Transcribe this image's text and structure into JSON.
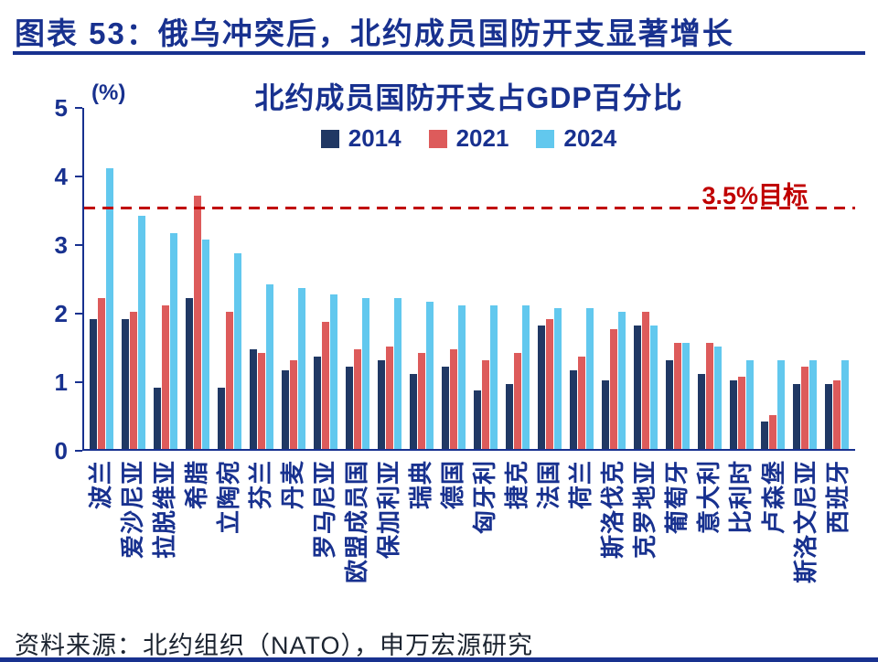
{
  "header": {
    "title": "图表 53：俄乌冲突后，北约成员国防开支显著增长"
  },
  "chart_data": {
    "type": "bar",
    "title": "北约成员国防开支占GDP百分比",
    "unit_label": "(%)",
    "xlabel": "",
    "ylabel": "%",
    "ylim": [
      0,
      5
    ],
    "yticks": [
      0,
      1,
      2,
      3,
      4,
      5
    ],
    "grid": false,
    "legend_position": "top-center",
    "target_line": {
      "value": 3.5,
      "label": "3.5%目标",
      "color": "#c00000",
      "style": "dashed"
    },
    "categories": [
      "波兰",
      "爱沙尼亚",
      "拉脱维亚",
      "希腊",
      "立陶宛",
      "芬兰",
      "丹麦",
      "罗马尼亚",
      "欧盟成员国",
      "保加利亚",
      "瑞典",
      "德国",
      "匈牙利",
      "捷克",
      "法国",
      "荷兰",
      "斯洛伐克",
      "克罗地亚",
      "葡萄牙",
      "意大利",
      "比利时",
      "卢森堡",
      "斯洛文尼亚",
      "西班牙"
    ],
    "series": [
      {
        "name": "2014",
        "color": "#203864",
        "values": [
          1.9,
          1.9,
          0.9,
          2.2,
          0.9,
          1.45,
          1.15,
          1.35,
          1.2,
          1.3,
          1.1,
          1.2,
          0.85,
          0.95,
          1.8,
          1.15,
          1.0,
          1.8,
          1.3,
          1.1,
          1.0,
          0.4,
          0.95,
          0.95
        ]
      },
      {
        "name": "2021",
        "color": "#dd5b5b",
        "values": [
          2.2,
          2.0,
          2.1,
          3.7,
          2.0,
          1.4,
          1.3,
          1.85,
          1.45,
          1.5,
          1.4,
          1.45,
          1.3,
          1.4,
          1.9,
          1.35,
          1.75,
          2.0,
          1.55,
          1.55,
          1.05,
          0.5,
          1.2,
          1.0
        ]
      },
      {
        "name": "2024",
        "color": "#62c8ee",
        "values": [
          4.1,
          3.4,
          3.15,
          3.05,
          2.85,
          2.4,
          2.35,
          2.25,
          2.2,
          2.2,
          2.15,
          2.1,
          2.1,
          2.1,
          2.05,
          2.05,
          2.0,
          1.8,
          1.55,
          1.5,
          1.3,
          1.3,
          1.3,
          1.3
        ]
      }
    ]
  },
  "footer": {
    "source": "资料来源：北约组织（NATO），申万宏源研究"
  },
  "colors": {
    "navy": "#18318f",
    "target_red": "#c00000",
    "background": "#ffffff"
  }
}
